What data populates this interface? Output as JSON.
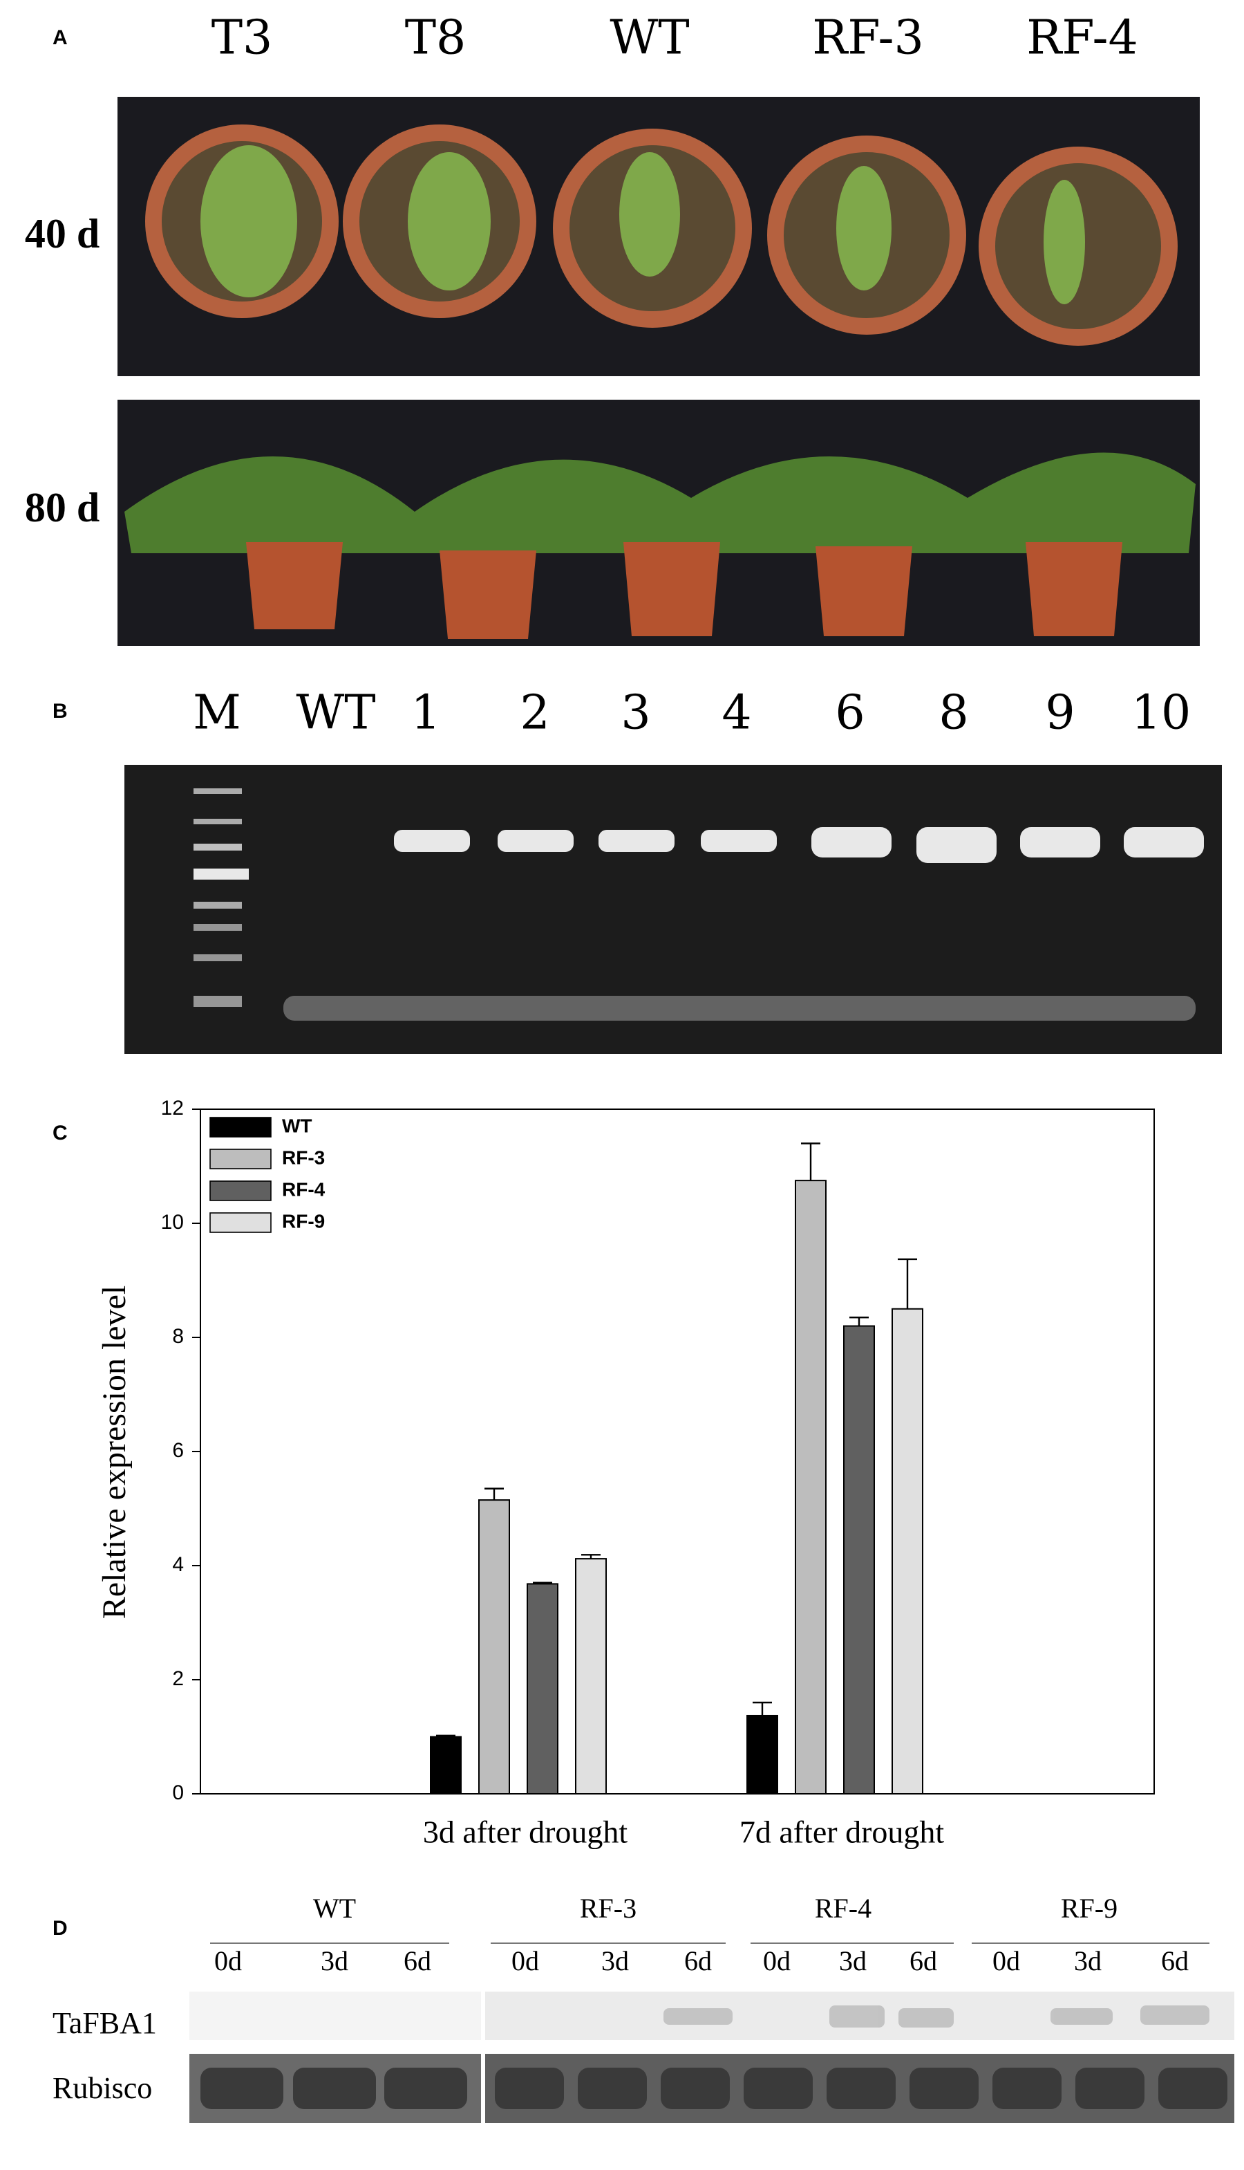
{
  "panels": {
    "A": {
      "label": "A",
      "columns": [
        "T3",
        "T8",
        "WT",
        "RF-3",
        "RF-4"
      ],
      "rows": [
        "40 d",
        "80 d"
      ]
    },
    "B": {
      "label": "B",
      "lanes": [
        "M",
        "WT",
        "1",
        "2",
        "3",
        "4",
        "6",
        "8",
        "9",
        "10"
      ]
    },
    "C": {
      "label": "C"
    },
    "D": {
      "label": "D",
      "groups": [
        {
          "name": "WT",
          "times": [
            "0d",
            "3d",
            "6d"
          ]
        },
        {
          "name": "RF-3",
          "times": [
            "0d",
            "3d",
            "6d"
          ]
        },
        {
          "name": "RF-4",
          "times": [
            "0d",
            "3d",
            "6d"
          ]
        },
        {
          "name": "RF-9",
          "times": [
            "0d",
            "3d",
            "6d"
          ]
        }
      ],
      "rows": [
        "TaFBA1",
        "Rubisco"
      ]
    }
  },
  "chart_data": {
    "type": "bar",
    "y_label": "Relative expression level",
    "categories": [
      "3d after drought",
      "7d after drought"
    ],
    "series": [
      {
        "name": "WT",
        "color": "#000000",
        "values": [
          1.0,
          1.37
        ],
        "errors": [
          0.02,
          0.23
        ]
      },
      {
        "name": "RF-3",
        "color": "#bdbdbd",
        "values": [
          5.15,
          10.75
        ],
        "errors": [
          0.2,
          0.65
        ]
      },
      {
        "name": "RF-4",
        "color": "#606060",
        "values": [
          3.68,
          8.2
        ],
        "errors": [
          0.02,
          0.15
        ]
      },
      {
        "name": "RF-9",
        "color": "#e0e0e0",
        "values": [
          4.12,
          8.5
        ],
        "errors": [
          0.07,
          0.87
        ]
      }
    ],
    "ylim": [
      0,
      12
    ],
    "yticks": [
      0,
      2,
      4,
      6,
      8,
      10,
      12
    ],
    "legend": "top-left"
  }
}
